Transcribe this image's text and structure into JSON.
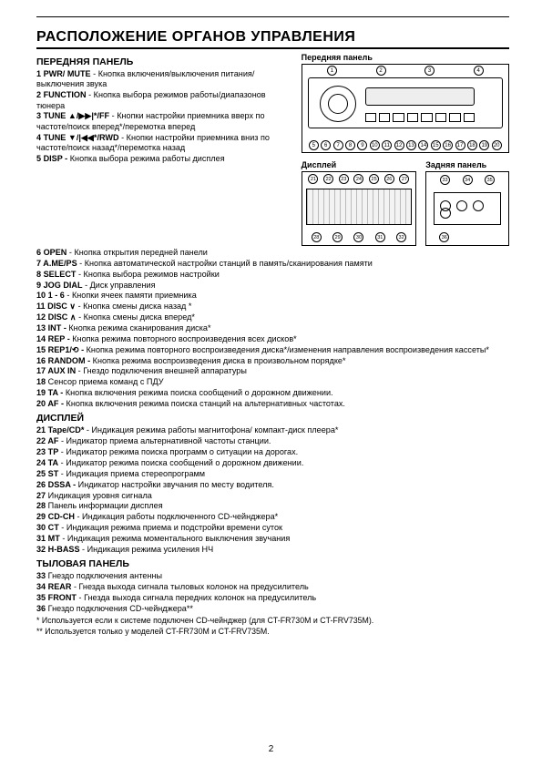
{
  "heading": "РАСПОЛОЖЕНИЕ ОРГАНОВ УПРАВЛЕНИЯ",
  "section_front": "ПЕРЕДНЯЯ ПАНЕЛЬ",
  "section_display": "ДИСПЛЕЙ",
  "section_rear": "ТЫЛОВАЯ ПАНЕЛЬ",
  "diagrams": {
    "front_label": "Передняя панель",
    "display_label": "Дисплей",
    "rear_label": "Задняя панель",
    "front_top_callouts": [
      "1",
      "2",
      "3",
      "4"
    ],
    "front_bot_callouts": [
      "5",
      "6",
      "7",
      "8",
      "9",
      "10",
      "11",
      "12",
      "13",
      "14",
      "15",
      "16",
      "17",
      "18",
      "19",
      "20"
    ],
    "disp_top_callouts": [
      "21",
      "22",
      "23",
      "24",
      "25",
      "26",
      "27"
    ],
    "disp_bot_callouts": [
      "28",
      "29",
      "30",
      "31",
      "32"
    ],
    "rear_top_callouts": [
      "33",
      "34",
      "35"
    ],
    "rear_bot_callouts": [
      "36"
    ]
  },
  "items_left": [
    {
      "n": "1",
      "label": "PWR/ MUTE",
      "desc": " - Кнопка включения/выключения питания/выключения звука"
    },
    {
      "n": "2",
      "label": "FUNCTION",
      "desc": " - Кнопка выбора режимов работы/диапазонов тюнера"
    },
    {
      "n": "3",
      "label": "TUNE ▲/▶▶|*/FF",
      "desc": " -  Кнопки настройки приемника вверх по частоте/поиск вперед*/перемотка вперед"
    },
    {
      "n": "4",
      "label": "TUNE ▼/|◀◀*/RWD",
      "desc": " - Кнопки настройки приемника вниз по частоте/поиск назад*/перемотка назад"
    },
    {
      "n": "5",
      "label": "DISP -",
      "desc": " Кнопка выбора режима работы дисплея"
    }
  ],
  "items_body": [
    {
      "n": "6",
      "label": "OPEN",
      "desc": " - Кнопка открытия передней панели"
    },
    {
      "n": "7",
      "label": "A.ME/PS",
      "desc": " - Кнопка автоматической настройки станций в память/сканирования памяти"
    },
    {
      "n": "8",
      "label": "SELECT",
      "desc": " - Кнопка выбора режимов настройки"
    },
    {
      "n": "9",
      "label": "JOG DIAL",
      "desc": " - Диск управления"
    },
    {
      "n": "10",
      "label": " 1 - 6",
      "desc": " - Кнопки ячеек памяти приемника"
    },
    {
      "n": "11",
      "label": " DISC ∨",
      "desc": " - Кнопка смены диска назад *"
    },
    {
      "n": "12",
      "label": " DISC ∧",
      "desc": " - Кнопка смены диска вперед*"
    },
    {
      "n": "13",
      "label": " INT -",
      "desc": " Кнопка режима сканирования диска*"
    },
    {
      "n": "14",
      "label": " REP -",
      "desc": " Кнопка режима повторного воспроизведения всех дисков*"
    },
    {
      "n": "15",
      "label": " REP1/⟲ -",
      "desc": " Кнопка режима повторного воспроизведения диска*/изменения направления воспроизведения кассеты*"
    },
    {
      "n": "16",
      "label": " RANDOM -",
      "desc": " Кнопка режима воспроизведения диска в произвольном порядке*"
    },
    {
      "n": "17",
      "label": " AUX IN",
      "desc": " - Гнездо  подключения внешней аппаратуры"
    },
    {
      "n": "18",
      "label": "",
      "desc": " Сенсор приема команд с ПДУ"
    },
    {
      "n": "19",
      "label": " TA -",
      "desc": " Кнопка включения режима поиска сообщений о дорожном движении."
    },
    {
      "n": "20",
      "label": " AF -",
      "desc": " Кнопка включения режима поиска станций на альтернативных частотах."
    }
  ],
  "items_display": [
    {
      "n": "21",
      "label": " Tape/CD*",
      "desc": " - Индикация режима работы магнитофона/ компакт-диск плеера*"
    },
    {
      "n": "22",
      "label": " AF",
      "desc": " - Индикатор приема альтернативной частоты станции."
    },
    {
      "n": "23",
      "label": " TP",
      "desc": " - Индикатор режима поиска программ о ситуации на дорогах."
    },
    {
      "n": "24",
      "label": " TA",
      "desc": " - Индикатор режима поиска сообщений о дорожном движении."
    },
    {
      "n": "25",
      "label": " ST",
      "desc": " - Индикация приема стереопрограмм"
    },
    {
      "n": "26",
      "label": " DSSA -",
      "desc": " Индикатор настройки звучания по месту водителя."
    },
    {
      "n": "27",
      "label": "",
      "desc": " Индикация уровня сигнала"
    },
    {
      "n": "28",
      "label": "",
      "desc": " Панель информации дисплея"
    },
    {
      "n": "29",
      "label": " CD-CH",
      "desc": " - Индикация работы подключенного CD-чейнджера*"
    },
    {
      "n": "30",
      "label": " CT",
      "desc": " - Индикация режима приема и подстройки времени суток"
    },
    {
      "n": "31",
      "label": " MT",
      "desc": " - Индикация режима моментального выключения звучания"
    },
    {
      "n": "32",
      "label": " H-BASS",
      "desc": " - Индикация режима усиления НЧ"
    }
  ],
  "items_rear": [
    {
      "n": "33",
      "label": "",
      "desc": " Гнездо подключения антенны"
    },
    {
      "n": "34",
      "label": " REAR",
      "desc": " - Гнезда выхода сигнала тыловых колонок на предусилитель"
    },
    {
      "n": "35",
      "label": " FRONT",
      "desc": " - Гнезда выхода сигнала передних колонок на предусилитель"
    },
    {
      "n": "36",
      "label": "",
      "desc": " Гнездо подключения CD-чейнджера**"
    }
  ],
  "footnotes": [
    "* Используется если к системе подключен CD-чейнджер (для CT-FR730M и CT-FRV735M).",
    "** Используется только у моделей CT-FR730M и CT-FRV735M."
  ],
  "page_number": "2"
}
